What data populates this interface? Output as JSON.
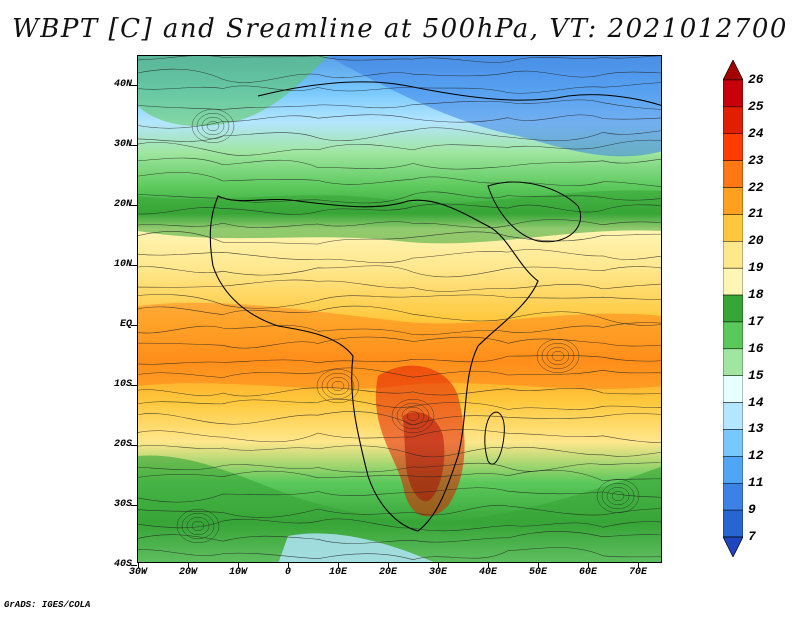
{
  "title": "WBPT [C] and Sreamline at 500hPa, VT: 2021012700",
  "credit": "GrADS: IGES/COLA",
  "lat_labels": [
    "40N",
    "30N",
    "20N",
    "10N",
    "EQ",
    "10S",
    "20S",
    "30S",
    "40S"
  ],
  "lon_labels": [
    "30W",
    "20W",
    "10W",
    "0",
    "10E",
    "20E",
    "30E",
    "40E",
    "50E",
    "60E",
    "70E"
  ],
  "colorbar": {
    "labels": [
      "26",
      "25",
      "24",
      "23",
      "22",
      "21",
      "20",
      "19",
      "18",
      "17",
      "16",
      "15",
      "14",
      "13",
      "12",
      "11",
      "9",
      "7"
    ],
    "colors": [
      "#a50000",
      "#c8000a",
      "#e11e00",
      "#ff3c00",
      "#ff7814",
      "#ffa01e",
      "#ffc83c",
      "#ffe78c",
      "#fff5b4",
      "#37a537",
      "#5ac85a",
      "#a0e6a0",
      "#e6ffff",
      "#b4e6ff",
      "#78c8ff",
      "#50a5f5",
      "#3c82e6",
      "#2864d2",
      "#1e46be"
    ]
  }
}
